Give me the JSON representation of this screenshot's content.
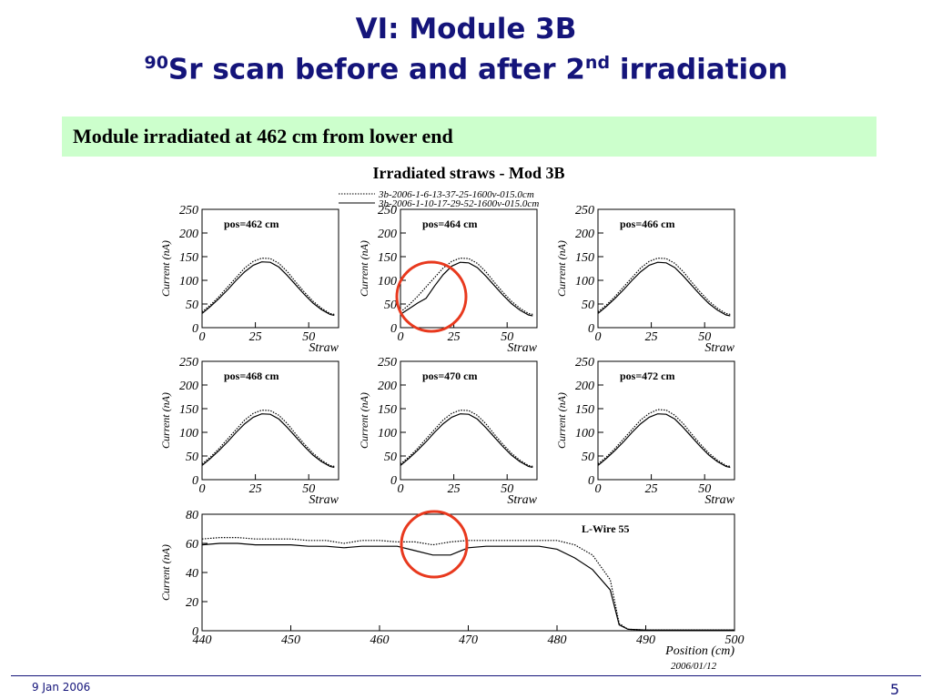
{
  "slide": {
    "title": "VI: Module 3B",
    "subtitle_parts": [
      "90",
      "Sr scan before and after 2",
      "nd",
      " irradiation"
    ],
    "box": "Module irradiated at 462 cm from lower end",
    "footer_date": "9 Jan 2006",
    "page": "5"
  },
  "figure": {
    "title": "Irradiated straws - Mod 3B",
    "legend": [
      "3b-2006-1-6-13-37-25-1600v-015.0cm",
      "3b-2006-1-10-17-29-52-1600v-015.0cm"
    ]
  },
  "chart_data": [
    {
      "type": "line",
      "annotation": "pos=462 cm",
      "xlabel": "Straw",
      "ylabel": "Current (nA)",
      "xlim": [
        0,
        64
      ],
      "ylim": [
        0,
        250
      ],
      "xticks": [
        0,
        25,
        50
      ],
      "yticks": [
        0,
        50,
        100,
        150,
        200,
        250
      ],
      "x": [
        0,
        4,
        8,
        12,
        16,
        20,
        24,
        28,
        32,
        36,
        40,
        44,
        48,
        52,
        56,
        60,
        62
      ],
      "series": [
        {
          "color": "#000000",
          "dash": true,
          "values": [
            33,
            48,
            66,
            86,
            106,
            126,
            140,
            147,
            146,
            136,
            118,
            96,
            75,
            56,
            41,
            30,
            28
          ]
        },
        {
          "color": "#000000",
          "dash": false,
          "values": [
            30,
            45,
            62,
            80,
            100,
            118,
            132,
            139,
            138,
            128,
            110,
            90,
            70,
            52,
            38,
            28,
            26
          ]
        }
      ]
    },
    {
      "type": "line",
      "annotation": "pos=464 cm",
      "xlabel": "Straw",
      "ylabel": "Current (nA)",
      "xlim": [
        0,
        64
      ],
      "ylim": [
        0,
        250
      ],
      "xticks": [
        0,
        25,
        50
      ],
      "yticks": [
        0,
        50,
        100,
        150,
        200,
        250
      ],
      "x": [
        0,
        4,
        8,
        12,
        16,
        20,
        24,
        28,
        32,
        36,
        40,
        44,
        48,
        52,
        56,
        60,
        62
      ],
      "series": [
        {
          "color": "#000000",
          "dash": true,
          "values": [
            33,
            48,
            66,
            86,
            106,
            126,
            140,
            147,
            146,
            136,
            118,
            96,
            75,
            56,
            41,
            30,
            28
          ]
        },
        {
          "color": "#000000",
          "dash": false,
          "values": [
            28,
            40,
            52,
            62,
            88,
            112,
            130,
            138,
            137,
            127,
            109,
            89,
            69,
            51,
            37,
            27,
            25
          ]
        }
      ]
    },
    {
      "type": "line",
      "annotation": "pos=466 cm",
      "xlabel": "Straw",
      "ylabel": "Current (nA)",
      "xlim": [
        0,
        64
      ],
      "ylim": [
        0,
        250
      ],
      "xticks": [
        0,
        25,
        50
      ],
      "yticks": [
        0,
        50,
        100,
        150,
        200,
        250
      ],
      "x": [
        0,
        4,
        8,
        12,
        16,
        20,
        24,
        28,
        32,
        36,
        40,
        44,
        48,
        52,
        56,
        60,
        62
      ],
      "series": [
        {
          "color": "#000000",
          "dash": true,
          "values": [
            33,
            48,
            66,
            86,
            106,
            126,
            140,
            147,
            146,
            136,
            118,
            96,
            75,
            56,
            41,
            30,
            28
          ]
        },
        {
          "color": "#000000",
          "dash": false,
          "values": [
            30,
            45,
            62,
            80,
            100,
            118,
            132,
            138,
            137,
            127,
            109,
            89,
            69,
            51,
            37,
            27,
            25
          ]
        }
      ]
    },
    {
      "type": "line",
      "annotation": "pos=468 cm",
      "xlabel": "Straw",
      "ylabel": "Current (nA)",
      "xlim": [
        0,
        64
      ],
      "ylim": [
        0,
        250
      ],
      "xticks": [
        0,
        25,
        50
      ],
      "yticks": [
        0,
        50,
        100,
        150,
        200,
        250
      ],
      "x": [
        0,
        4,
        8,
        12,
        16,
        20,
        24,
        28,
        32,
        36,
        40,
        44,
        48,
        52,
        56,
        60,
        62
      ],
      "series": [
        {
          "color": "#000000",
          "dash": true,
          "values": [
            33,
            48,
            66,
            86,
            106,
            126,
            140,
            147,
            146,
            136,
            118,
            96,
            75,
            56,
            41,
            30,
            28
          ]
        },
        {
          "color": "#000000",
          "dash": false,
          "values": [
            30,
            45,
            62,
            80,
            100,
            118,
            132,
            139,
            138,
            128,
            110,
            90,
            70,
            52,
            38,
            28,
            26
          ]
        }
      ]
    },
    {
      "type": "line",
      "annotation": "pos=470 cm",
      "xlabel": "Straw",
      "ylabel": "Current (nA)",
      "xlim": [
        0,
        64
      ],
      "ylim": [
        0,
        250
      ],
      "xticks": [
        0,
        25,
        50
      ],
      "yticks": [
        0,
        50,
        100,
        150,
        200,
        250
      ],
      "x": [
        0,
        4,
        8,
        12,
        16,
        20,
        24,
        28,
        32,
        36,
        40,
        44,
        48,
        52,
        56,
        60,
        62
      ],
      "series": [
        {
          "color": "#000000",
          "dash": true,
          "values": [
            33,
            48,
            66,
            86,
            106,
            126,
            140,
            147,
            146,
            136,
            118,
            96,
            75,
            56,
            41,
            30,
            28
          ]
        },
        {
          "color": "#000000",
          "dash": false,
          "values": [
            30,
            45,
            62,
            80,
            100,
            118,
            132,
            139,
            138,
            128,
            110,
            90,
            70,
            52,
            38,
            28,
            26
          ]
        }
      ]
    },
    {
      "type": "line",
      "annotation": "pos=472 cm",
      "xlabel": "Straw",
      "ylabel": "Current (nA)",
      "xlim": [
        0,
        64
      ],
      "ylim": [
        0,
        250
      ],
      "xticks": [
        0,
        25,
        50
      ],
      "yticks": [
        0,
        50,
        100,
        150,
        200,
        250
      ],
      "x": [
        0,
        4,
        8,
        12,
        16,
        20,
        24,
        28,
        32,
        36,
        40,
        44,
        48,
        52,
        56,
        60,
        62
      ],
      "series": [
        {
          "color": "#000000",
          "dash": true,
          "values": [
            33,
            48,
            66,
            86,
            106,
            126,
            140,
            148,
            147,
            136,
            118,
            96,
            75,
            56,
            41,
            30,
            28
          ]
        },
        {
          "color": "#000000",
          "dash": false,
          "values": [
            30,
            45,
            62,
            80,
            100,
            118,
            132,
            139,
            138,
            128,
            110,
            90,
            70,
            52,
            38,
            28,
            26
          ]
        }
      ]
    },
    {
      "type": "line",
      "annotation": "L-Wire 55",
      "xlabel": "Position (cm)",
      "ylabel": "Current (nA)",
      "date": "2006/01/12",
      "xlim": [
        440,
        500
      ],
      "ylim": [
        0,
        80
      ],
      "xticks": [
        440,
        450,
        460,
        470,
        480,
        490,
        500
      ],
      "yticks": [
        0,
        20,
        40,
        60,
        80
      ],
      "x": [
        440,
        442,
        444,
        446,
        448,
        450,
        452,
        454,
        456,
        458,
        460,
        462,
        464,
        466,
        468,
        470,
        472,
        474,
        476,
        478,
        480,
        482,
        484,
        486,
        487,
        488,
        490,
        492,
        494,
        496,
        498,
        500
      ],
      "series": [
        {
          "color": "#000000",
          "dash": true,
          "values": [
            63,
            64,
            64,
            63,
            63,
            63,
            62,
            62,
            60,
            62,
            62,
            61,
            61,
            59,
            61,
            62,
            62,
            62,
            62,
            62,
            62,
            59,
            52,
            35,
            5,
            1,
            0.5,
            0.5,
            0.5,
            0.5,
            0.5,
            0.5
          ]
        },
        {
          "color": "#000000",
          "dash": false,
          "values": [
            59,
            60,
            60,
            59,
            59,
            59,
            58,
            58,
            57,
            58,
            58,
            58,
            55,
            52,
            52,
            57,
            58,
            58,
            58,
            58,
            56,
            50,
            42,
            28,
            4,
            1,
            0.5,
            0.5,
            0.5,
            0.5,
            0.5,
            0.5
          ]
        }
      ]
    }
  ]
}
